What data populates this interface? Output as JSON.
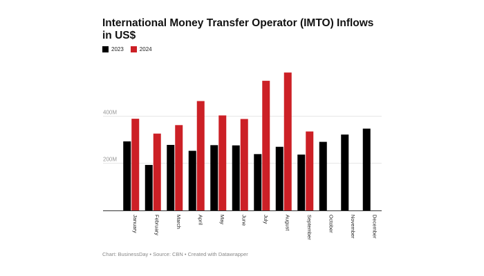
{
  "title": "International Money Transfer Operator (IMTO) Inflows in US$",
  "legend": [
    {
      "label": "2023",
      "color": "#000000"
    },
    {
      "label": "2024",
      "color": "#cc2026"
    }
  ],
  "footer": "Chart: BusinessDay • Source: CBN • Created with Datawrapper",
  "chart_data": {
    "type": "bar",
    "title": "International Money Transfer Operator (IMTO) Inflows in US$",
    "xlabel": "",
    "ylabel": "",
    "ylim": [
      0,
      600
    ],
    "yticks": [
      {
        "value": 200,
        "label": "200M"
      },
      {
        "value": 400,
        "label": "400M"
      }
    ],
    "categories": [
      "January",
      "February",
      "March",
      "April",
      "May",
      "June",
      "July",
      "August",
      "September",
      "October",
      "November",
      "December"
    ],
    "series": [
      {
        "name": "2023",
        "color": "#000000",
        "values": [
          293,
          193,
          278,
          253,
          277,
          276,
          239,
          270,
          237,
          291,
          322,
          347
        ]
      },
      {
        "name": "2024",
        "color": "#cc2026",
        "values": [
          389,
          326,
          362,
          464,
          403,
          388,
          550,
          585,
          335,
          null,
          null,
          null
        ]
      }
    ]
  }
}
